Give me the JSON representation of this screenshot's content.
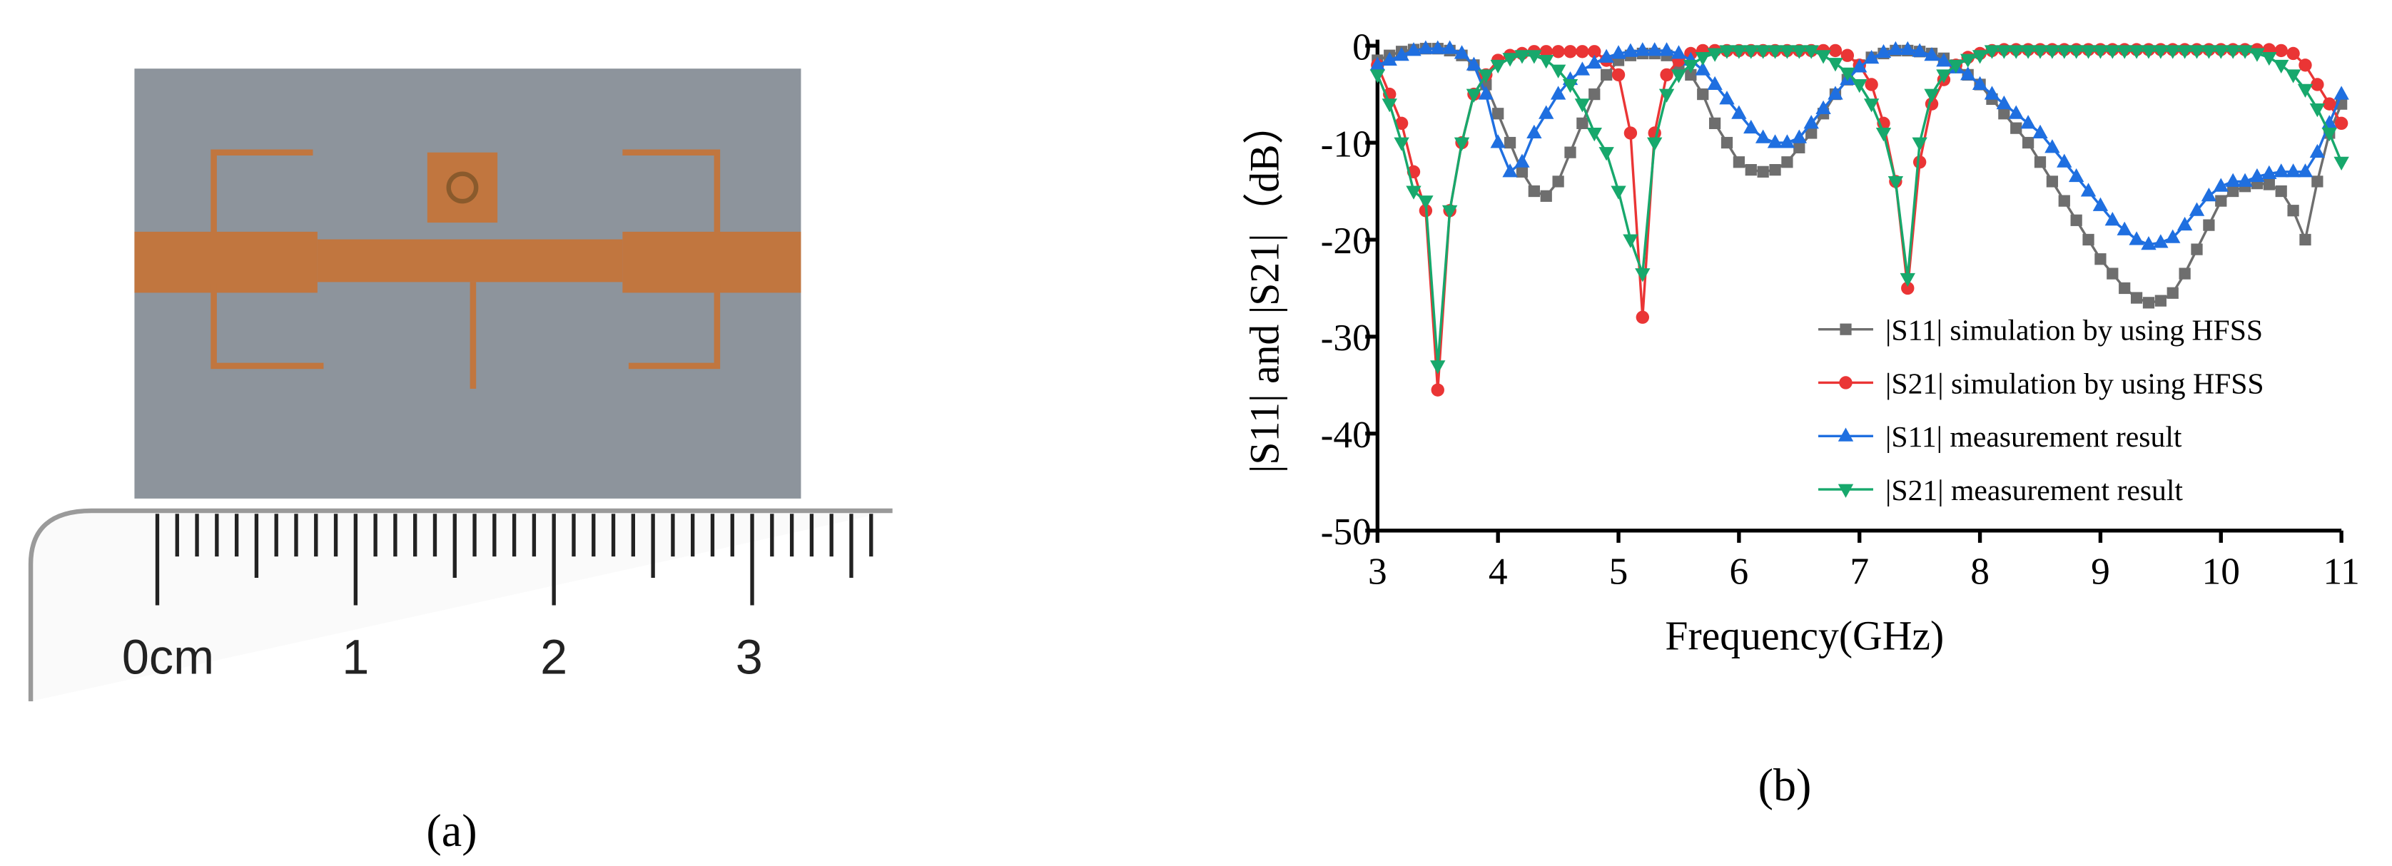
{
  "panel_a": {
    "caption": "(a)",
    "ruler_labels": [
      "0cm",
      "1",
      "2",
      "3"
    ]
  },
  "panel_b": {
    "caption": "(b)"
  },
  "chart_data": {
    "type": "line",
    "xlabel": "Frequency(GHz)",
    "ylabel": "|S11| and |S21|（dB）",
    "x": [
      3,
      3.1,
      3.2,
      3.3,
      3.4,
      3.5,
      3.6,
      3.7,
      3.8,
      3.9,
      4,
      4.1,
      4.2,
      4.3,
      4.4,
      4.5,
      4.6,
      4.7,
      4.8,
      4.9,
      5,
      5.1,
      5.2,
      5.3,
      5.4,
      5.5,
      5.6,
      5.7,
      5.8,
      5.9,
      6,
      6.1,
      6.2,
      6.3,
      6.4,
      6.5,
      6.6,
      6.7,
      6.8,
      6.9,
      7,
      7.1,
      7.2,
      7.3,
      7.4,
      7.5,
      7.6,
      7.7,
      7.8,
      7.9,
      8,
      8.1,
      8.2,
      8.3,
      8.4,
      8.5,
      8.6,
      8.7,
      8.8,
      8.9,
      9,
      9.1,
      9.2,
      9.3,
      9.4,
      9.5,
      9.6,
      9.7,
      9.8,
      9.9,
      10,
      10.1,
      10.2,
      10.3,
      10.4,
      10.5,
      10.6,
      10.7,
      10.8,
      10.9,
      11
    ],
    "xlim": [
      3,
      11
    ],
    "xticks": [
      3,
      4,
      5,
      6,
      7,
      8,
      9,
      10,
      11
    ],
    "ylim": [
      -50,
      0
    ],
    "yticks": [
      0,
      -10,
      -20,
      -30,
      -40,
      -50
    ],
    "series": [
      {
        "name": "|S11|  simulation by using HFSS",
        "color": "#6e6e6e",
        "marker": "square",
        "values": [
          -1.5,
          -1,
          -0.6,
          -0.4,
          -0.3,
          -0.3,
          -0.5,
          -1,
          -2,
          -4,
          -7,
          -10,
          -13,
          -15,
          -15.5,
          -14,
          -11,
          -8,
          -5,
          -3,
          -1.5,
          -1,
          -0.8,
          -0.8,
          -1,
          -2,
          -3,
          -5,
          -8,
          -10,
          -12,
          -12.8,
          -13,
          -12.8,
          -12,
          -10.5,
          -9,
          -7,
          -5,
          -3.5,
          -2,
          -1.2,
          -0.8,
          -0.5,
          -0.5,
          -0.6,
          -0.8,
          -1.3,
          -2,
          -3,
          -4,
          -5.5,
          -7,
          -8.5,
          -10,
          -12,
          -14,
          -16,
          -18,
          -20,
          -22,
          -23.5,
          -25,
          -26,
          -26.5,
          -26.3,
          -25.5,
          -23.5,
          -21,
          -18.5,
          -16,
          -15,
          -14.5,
          -14.2,
          -14.3,
          -15,
          -17,
          -20,
          -14,
          -9,
          -6
        ]
      },
      {
        "name": "|S21|  simulation by using HFSS",
        "color": "#ea3535",
        "marker": "circle",
        "values": [
          -2,
          -5,
          -8,
          -13,
          -17,
          -35.5,
          -17,
          -10,
          -5,
          -3,
          -1.5,
          -1,
          -0.8,
          -0.6,
          -0.6,
          -0.6,
          -0.6,
          -0.6,
          -0.6,
          -1.5,
          -3,
          -9,
          -28,
          -9,
          -3,
          -1.5,
          -0.8,
          -0.5,
          -0.5,
          -0.5,
          -0.5,
          -0.5,
          -0.5,
          -0.5,
          -0.5,
          -0.5,
          -0.5,
          -0.5,
          -0.5,
          -1,
          -2,
          -4,
          -8,
          -14,
          -25,
          -12,
          -6,
          -3.5,
          -2,
          -1.2,
          -0.8,
          -0.5,
          -0.4,
          -0.4,
          -0.4,
          -0.4,
          -0.4,
          -0.4,
          -0.4,
          -0.4,
          -0.4,
          -0.4,
          -0.4,
          -0.4,
          -0.4,
          -0.4,
          -0.4,
          -0.4,
          -0.4,
          -0.4,
          -0.4,
          -0.4,
          -0.4,
          -0.4,
          -0.4,
          -0.5,
          -0.8,
          -2,
          -4,
          -6,
          -8
        ]
      },
      {
        "name": "|S11|  measurement result",
        "color": "#1f6fe0",
        "marker": "triangle-up",
        "values": [
          -2,
          -1.5,
          -1,
          -0.5,
          -0.3,
          -0.3,
          -0.3,
          -0.8,
          -2,
          -5,
          -10,
          -13,
          -12,
          -9,
          -7,
          -5,
          -3.5,
          -2.5,
          -1.8,
          -1.2,
          -0.8,
          -0.6,
          -0.5,
          -0.5,
          -0.5,
          -0.8,
          -1.5,
          -2.5,
          -4,
          -5.5,
          -7,
          -8.5,
          -9.5,
          -10,
          -10,
          -9.5,
          -8,
          -6.5,
          -5,
          -3.5,
          -2.2,
          -1.3,
          -0.7,
          -0.4,
          -0.4,
          -0.6,
          -1,
          -1.6,
          -2.3,
          -3,
          -4,
          -5,
          -6,
          -7,
          -8,
          -9,
          -10.5,
          -12,
          -13.5,
          -15,
          -16.5,
          -18,
          -19,
          -20,
          -20.5,
          -20.3,
          -19.8,
          -18.5,
          -17,
          -15.5,
          -14.5,
          -14,
          -14,
          -13.5,
          -13.2,
          -13,
          -13,
          -13,
          -11,
          -8,
          -5
        ]
      },
      {
        "name": "|S21|  measurement result",
        "color": "#17a86c",
        "marker": "triangle-down",
        "values": [
          -3,
          -6,
          -10,
          -15,
          -16,
          -33,
          -17,
          -10,
          -5,
          -3,
          -2,
          -1.3,
          -1,
          -1,
          -1.5,
          -2.5,
          -4,
          -6,
          -9,
          -11,
          -15,
          -20,
          -23.5,
          -10,
          -5,
          -3,
          -2,
          -1.2,
          -0.8,
          -0.5,
          -0.5,
          -0.5,
          -0.5,
          -0.5,
          -0.5,
          -0.5,
          -0.5,
          -1,
          -1.8,
          -2.8,
          -4,
          -6,
          -9,
          -14,
          -24,
          -10,
          -5,
          -3,
          -2,
          -1.4,
          -1,
          -0.5,
          -0.5,
          -0.5,
          -0.5,
          -0.5,
          -0.5,
          -0.5,
          -0.5,
          -0.5,
          -0.5,
          -0.5,
          -0.5,
          -0.5,
          -0.5,
          -0.5,
          -0.5,
          -0.5,
          -0.5,
          -0.5,
          -0.5,
          -0.5,
          -0.5,
          -0.8,
          -1.2,
          -2,
          -3,
          -4.5,
          -6.5,
          -9,
          -12
        ]
      }
    ]
  }
}
